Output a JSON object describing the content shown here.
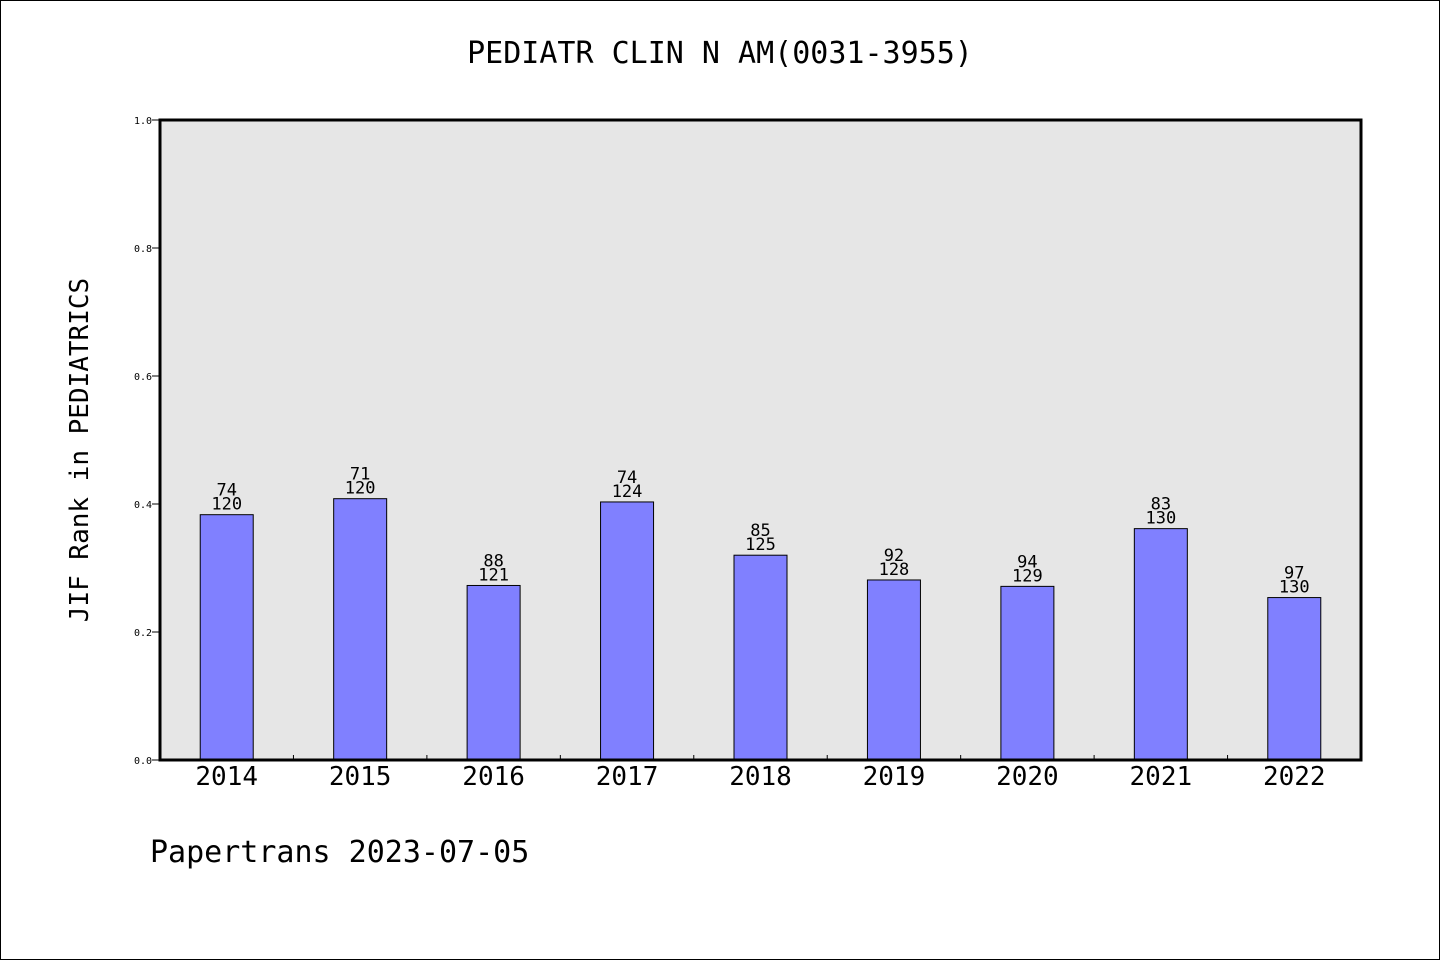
{
  "footer_text": "Papertrans 2023-07-05",
  "colors": {
    "bar_fill": "#8080ff",
    "plot_background": "#e6e6e6",
    "axis": "#000000"
  },
  "chart_data": {
    "type": "bar",
    "title": "PEDIATR CLIN N AM(0031-3955)",
    "xlabel": "",
    "ylabel": "JIF Rank in PEDIATRICS",
    "categories": [
      "2014",
      "2015",
      "2016",
      "2017",
      "2018",
      "2019",
      "2020",
      "2021",
      "2022"
    ],
    "values": [
      0.3833,
      0.4083,
      0.2727,
      0.4032,
      0.32,
      0.2813,
      0.2713,
      0.3615,
      0.2538
    ],
    "rank": [
      "74",
      "71",
      "88",
      "74",
      "85",
      "92",
      "94",
      "83",
      "97"
    ],
    "total": [
      "120",
      "120",
      "121",
      "124",
      "125",
      "128",
      "129",
      "130",
      "130"
    ],
    "ylim": [
      0,
      1.0
    ],
    "yticks": [
      "0.0",
      "0.2",
      "0.4",
      "0.6",
      "0.8",
      "1.0"
    ],
    "grid": false,
    "legend": "none"
  }
}
